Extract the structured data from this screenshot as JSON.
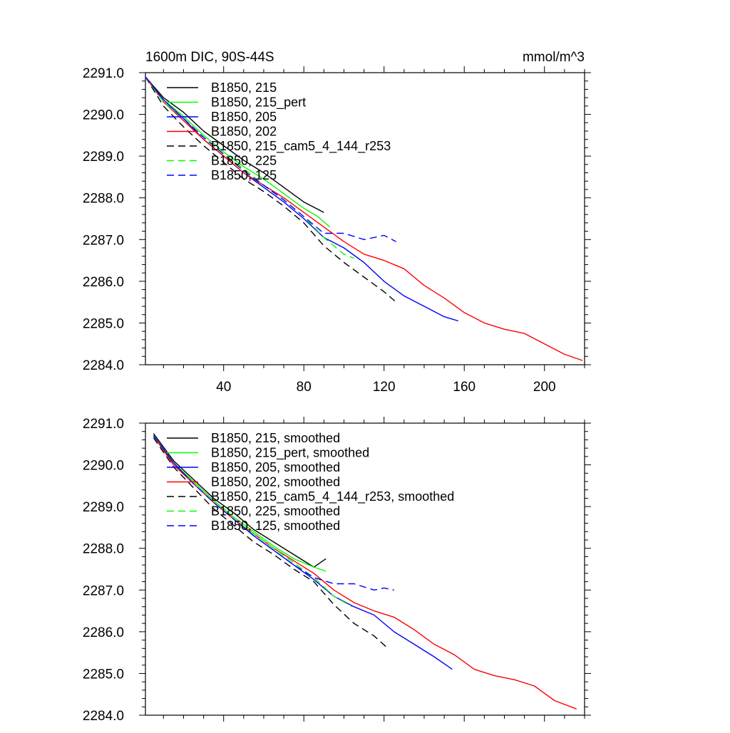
{
  "panels": [
    {
      "title_left": "1600m DIC, 90S-44S",
      "title_right": "mmol/m^3"
    },
    {
      "title_left": "",
      "title_right": ""
    }
  ],
  "chart_data": [
    {
      "type": "line",
      "title": "1600m DIC, 90S-44S",
      "units": "mmol/m^3",
      "xlim": [
        1,
        220
      ],
      "ylim": [
        2284.0,
        2291.0
      ],
      "xticks": [
        40,
        80,
        120,
        160,
        200
      ],
      "xtick_labels": [
        "40",
        "80",
        "120",
        "160",
        "200"
      ],
      "yticks": [
        2284.0,
        2285.0,
        2286.0,
        2287.0,
        2288.0,
        2289.0,
        2290.0,
        2291.0
      ],
      "ytick_labels": [
        "2284.0",
        "2285.0",
        "2286.0",
        "2287.0",
        "2288.0",
        "2289.0",
        "2290.0",
        "2291.0"
      ],
      "legend_position": "top-left",
      "series": [
        {
          "name": "B1850, 215",
          "color": "#000000",
          "dash": "solid",
          "x": [
            1,
            10,
            20,
            30,
            40,
            50,
            60,
            70,
            80,
            86,
            90
          ],
          "y": [
            2290.9,
            2290.4,
            2290.05,
            2289.6,
            2289.25,
            2288.9,
            2288.6,
            2288.25,
            2287.9,
            2287.75,
            2287.65
          ]
        },
        {
          "name": "B1850, 215_pert",
          "color": "#00ff00",
          "dash": "solid",
          "x": [
            1,
            10,
            20,
            30,
            40,
            50,
            60,
            70,
            80,
            87,
            93
          ],
          "y": [
            2290.9,
            2290.35,
            2289.95,
            2289.5,
            2289.1,
            2288.75,
            2288.45,
            2288.1,
            2287.75,
            2287.55,
            2287.3
          ]
        },
        {
          "name": "B1850, 205",
          "color": "#0000ff",
          "dash": "solid",
          "x": [
            1,
            10,
            20,
            30,
            40,
            50,
            60,
            70,
            80,
            90,
            100,
            110,
            120,
            130,
            140,
            150,
            157
          ],
          "y": [
            2290.9,
            2290.35,
            2289.9,
            2289.4,
            2289.0,
            2288.6,
            2288.25,
            2287.9,
            2287.5,
            2287.05,
            2286.8,
            2286.45,
            2286.0,
            2285.65,
            2285.4,
            2285.15,
            2285.05
          ]
        },
        {
          "name": "B1850, 202",
          "color": "#ff0000",
          "dash": "solid",
          "x": [
            1,
            10,
            20,
            30,
            40,
            50,
            60,
            70,
            80,
            90,
            100,
            110,
            120,
            130,
            140,
            150,
            160,
            170,
            180,
            190,
            200,
            210,
            219
          ],
          "y": [
            2290.9,
            2290.3,
            2289.85,
            2289.4,
            2289.0,
            2288.6,
            2288.3,
            2288.0,
            2287.65,
            2287.3,
            2286.95,
            2286.65,
            2286.5,
            2286.3,
            2285.9,
            2285.6,
            2285.25,
            2285.0,
            2284.85,
            2284.75,
            2284.5,
            2284.25,
            2284.1
          ]
        },
        {
          "name": "B1850, 215_cam5_4_144_r253",
          "color": "#000000",
          "dash": "dashed",
          "x": [
            1,
            10,
            20,
            30,
            40,
            50,
            60,
            70,
            80,
            90,
            100,
            110,
            120,
            126
          ],
          "y": [
            2290.9,
            2290.2,
            2289.7,
            2289.25,
            2288.85,
            2288.45,
            2288.15,
            2287.8,
            2287.4,
            2286.85,
            2286.45,
            2286.1,
            2285.75,
            2285.5
          ]
        },
        {
          "name": "B1850, 225",
          "color": "#00ff00",
          "dash": "dashed",
          "x": [
            1,
            10,
            20,
            30,
            40,
            50,
            60,
            70,
            80,
            90,
            100,
            105
          ],
          "y": [
            2290.9,
            2290.3,
            2289.9,
            2289.45,
            2289.05,
            2288.7,
            2288.3,
            2287.95,
            2287.55,
            2287.05,
            2286.65,
            2286.55
          ]
        },
        {
          "name": "B1850, 125",
          "color": "#0000ff",
          "dash": "dashed",
          "x": [
            1,
            10,
            20,
            30,
            40,
            50,
            60,
            70,
            80,
            90,
            100,
            110,
            115,
            120,
            126
          ],
          "y": [
            2290.9,
            2290.35,
            2289.9,
            2289.45,
            2289.05,
            2288.65,
            2288.3,
            2287.95,
            2287.55,
            2287.15,
            2287.15,
            2287.0,
            2287.05,
            2287.1,
            2286.95
          ]
        }
      ]
    },
    {
      "type": "line",
      "xlim": [
        1,
        220
      ],
      "ylim": [
        2284.0,
        2291.0
      ],
      "xticks": [
        40,
        80,
        120,
        160,
        200
      ],
      "xtick_labels": [],
      "yticks": [
        2284.0,
        2285.0,
        2286.0,
        2287.0,
        2288.0,
        2289.0,
        2290.0,
        2291.0
      ],
      "ytick_labels": [
        "2284.0",
        "2285.0",
        "2286.0",
        "2287.0",
        "2288.0",
        "2289.0",
        "2290.0",
        "2291.0"
      ],
      "legend_position": "top-left",
      "series": [
        {
          "name": "B1850, 215, smoothed",
          "color": "#000000",
          "dash": "solid",
          "x": [
            5,
            15,
            25,
            35,
            45,
            55,
            65,
            75,
            85,
            91
          ],
          "y": [
            2290.75,
            2290.1,
            2289.65,
            2289.2,
            2288.85,
            2288.45,
            2288.15,
            2287.85,
            2287.55,
            2287.75
          ]
        },
        {
          "name": "B1850, 215_pert, smoothed",
          "color": "#00ff00",
          "dash": "solid",
          "x": [
            5,
            15,
            25,
            35,
            45,
            55,
            65,
            75,
            85,
            91
          ],
          "y": [
            2290.7,
            2290.05,
            2289.6,
            2289.15,
            2288.75,
            2288.4,
            2288.05,
            2287.75,
            2287.55,
            2287.45
          ]
        },
        {
          "name": "B1850, 205, smoothed",
          "color": "#0000ff",
          "dash": "solid",
          "x": [
            5,
            15,
            25,
            35,
            45,
            55,
            65,
            75,
            85,
            95,
            105,
            115,
            125,
            135,
            145,
            154
          ],
          "y": [
            2290.7,
            2290.05,
            2289.55,
            2289.1,
            2288.7,
            2288.3,
            2287.95,
            2287.6,
            2287.25,
            2286.85,
            2286.6,
            2286.4,
            2286.0,
            2285.7,
            2285.4,
            2285.1
          ]
        },
        {
          "name": "B1850, 202, smoothed",
          "color": "#ff0000",
          "dash": "solid",
          "x": [
            5,
            15,
            25,
            35,
            45,
            55,
            65,
            75,
            85,
            95,
            105,
            115,
            125,
            135,
            145,
            155,
            165,
            175,
            185,
            195,
            205,
            216
          ],
          "y": [
            2290.7,
            2290.0,
            2289.55,
            2289.1,
            2288.7,
            2288.35,
            2288.0,
            2287.7,
            2287.4,
            2287.0,
            2286.7,
            2286.5,
            2286.35,
            2286.05,
            2285.7,
            2285.45,
            2285.1,
            2284.95,
            2284.85,
            2284.7,
            2284.35,
            2284.15
          ]
        },
        {
          "name": "B1850, 215_cam5_4_144_r253, smoothed",
          "color": "#000000",
          "dash": "dashed",
          "x": [
            5,
            15,
            25,
            35,
            45,
            55,
            65,
            75,
            85,
            95,
            105,
            115,
            122
          ],
          "y": [
            2290.65,
            2289.95,
            2289.45,
            2288.95,
            2288.55,
            2288.15,
            2287.85,
            2287.5,
            2287.2,
            2286.65,
            2286.2,
            2285.9,
            2285.6
          ]
        },
        {
          "name": "B1850, 225, smoothed",
          "color": "#00ff00",
          "dash": "dashed",
          "x": [
            5,
            15,
            25,
            35,
            45,
            55,
            65,
            75,
            85,
            95,
            104
          ],
          "y": [
            2290.7,
            2290.05,
            2289.55,
            2289.1,
            2288.7,
            2288.35,
            2288.0,
            2287.65,
            2287.3,
            2286.85,
            2286.6
          ]
        },
        {
          "name": "B1850, 125, smoothed",
          "color": "#0000ff",
          "dash": "dashed",
          "x": [
            5,
            15,
            25,
            35,
            45,
            55,
            65,
            75,
            85,
            95,
            105,
            115,
            120,
            125
          ],
          "y": [
            2290.7,
            2290.05,
            2289.55,
            2289.1,
            2288.7,
            2288.3,
            2287.95,
            2287.6,
            2287.3,
            2287.15,
            2287.15,
            2287.0,
            2287.05,
            2287.0
          ]
        }
      ]
    }
  ]
}
